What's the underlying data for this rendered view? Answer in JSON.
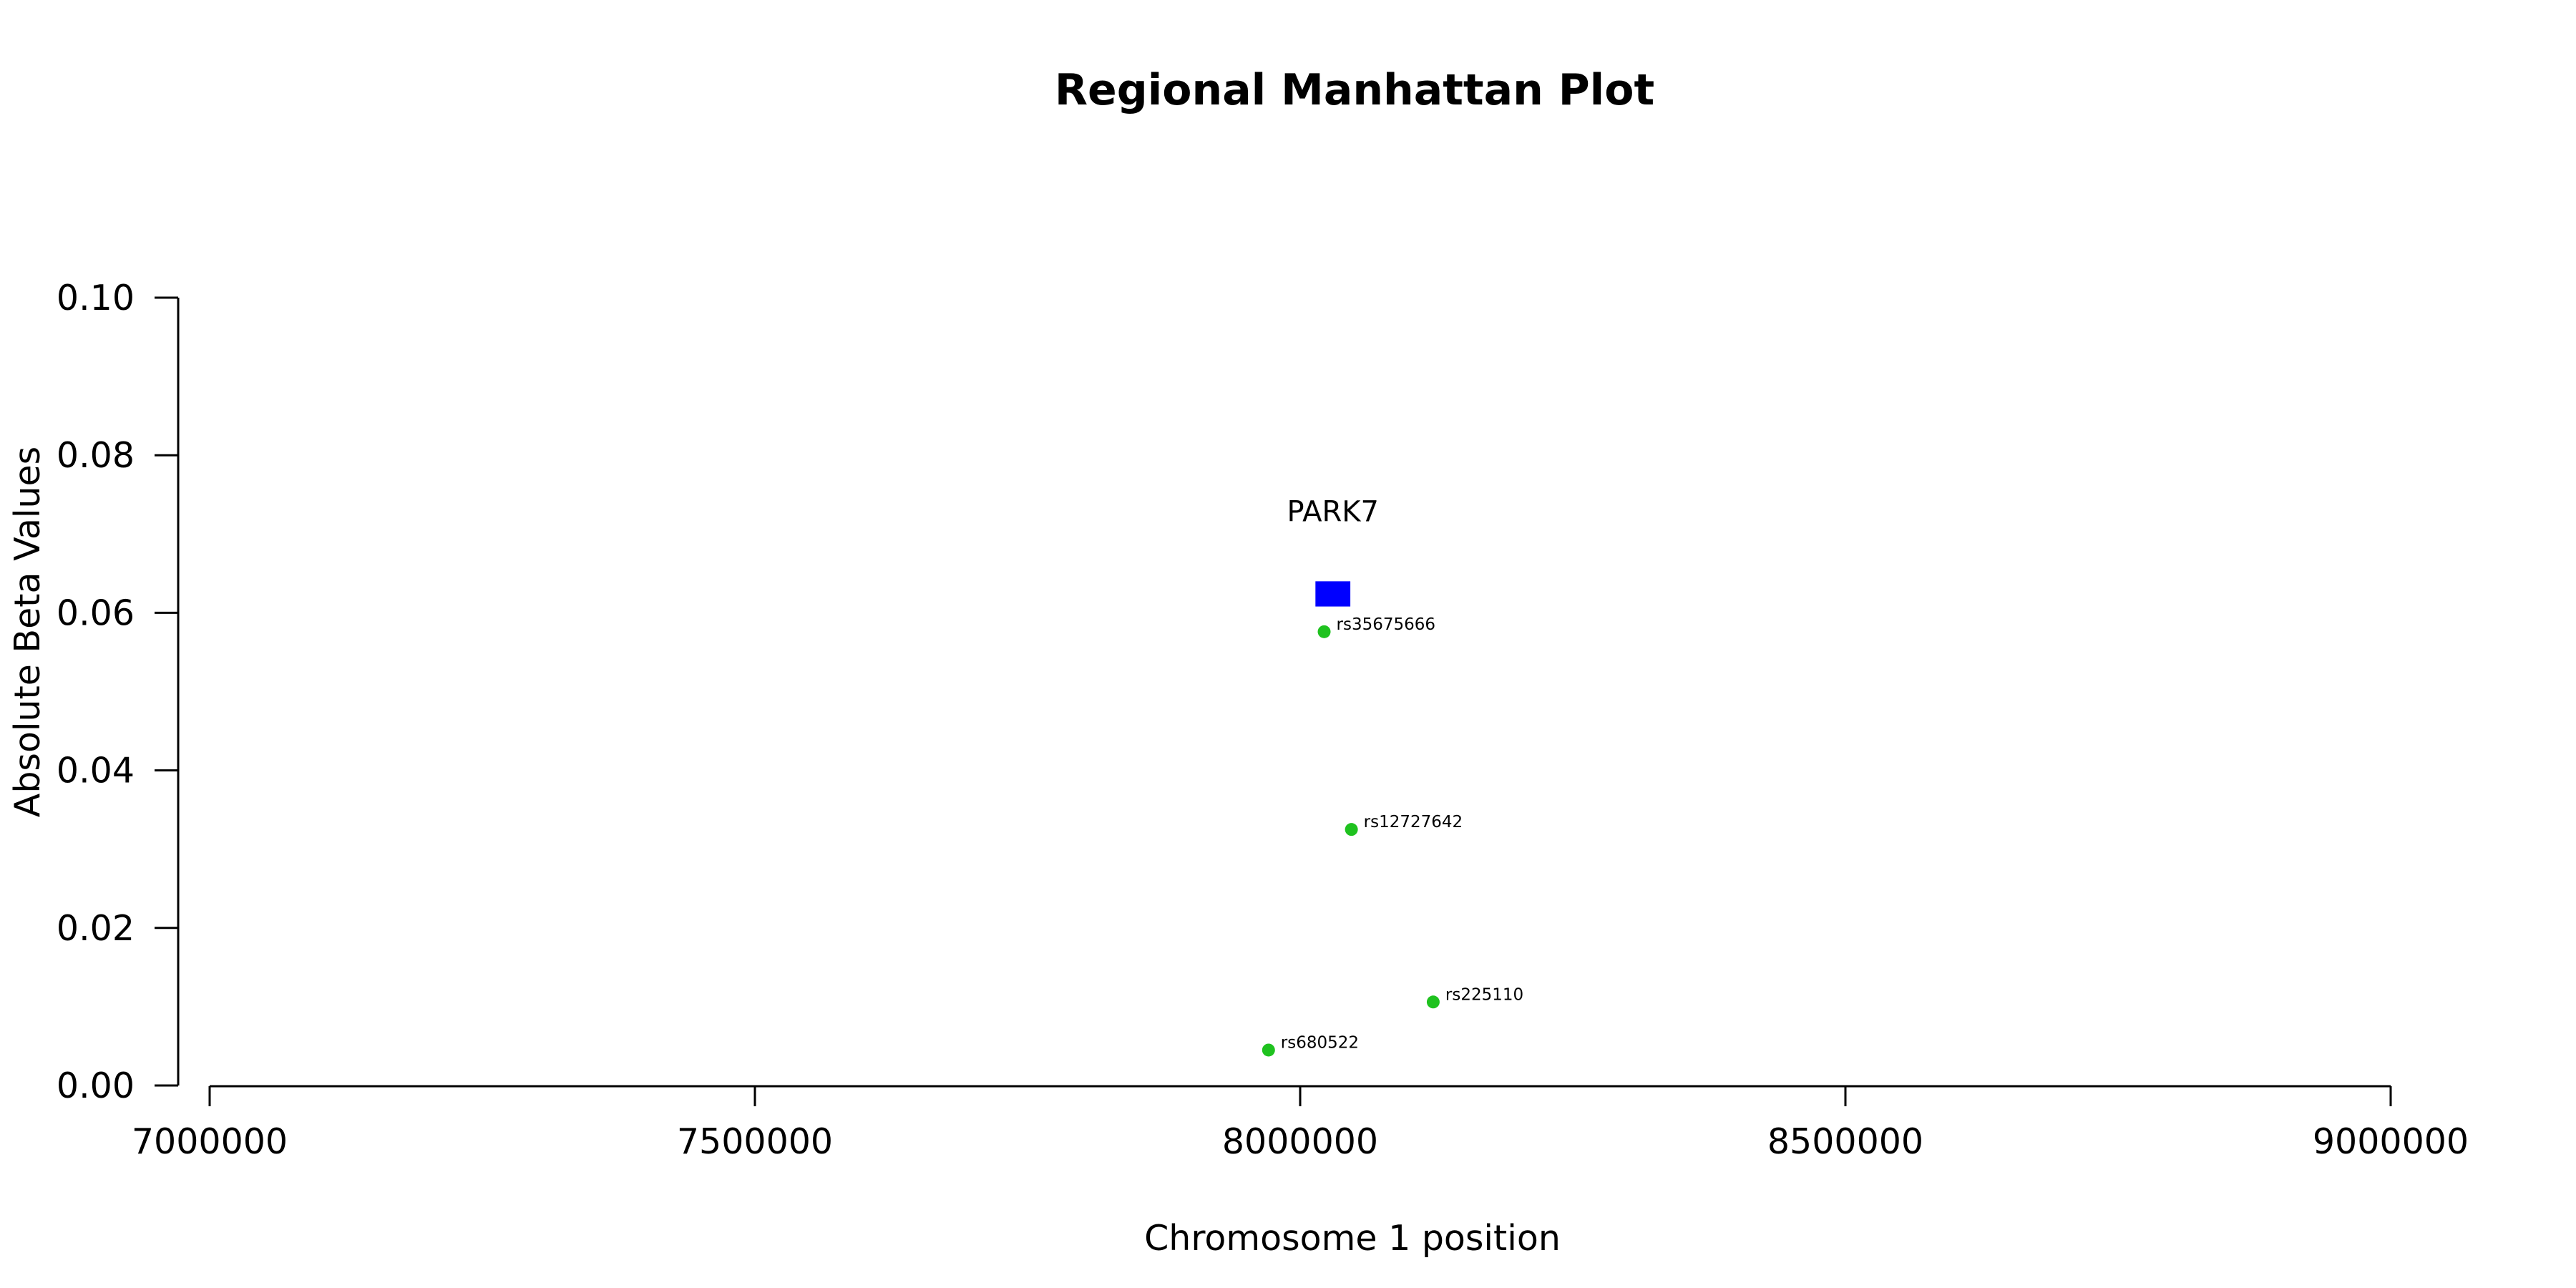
{
  "chart_data": {
    "type": "scatter",
    "title": "Regional Manhattan Plot",
    "xlabel": "Chromosome 1 position",
    "ylabel": "Absolute Beta Values",
    "xlim": [
      7000000,
      9000000
    ],
    "ylim": [
      0,
      0.1
    ],
    "x_ticks": [
      7000000,
      7500000,
      8000000,
      8500000,
      9000000
    ],
    "x_tick_labels": [
      "7000000",
      "7500000",
      "8000000",
      "8500000",
      "9000000"
    ],
    "y_ticks": [
      0,
      0.02,
      0.04,
      0.06,
      0.08,
      0.1
    ],
    "y_tick_labels": [
      "0.00",
      "0.02",
      "0.04",
      "0.06",
      "0.08",
      "0.10"
    ],
    "grid": false,
    "point_color": "#1fc21f",
    "points": [
      {
        "label": "rs35675666",
        "x": 8022000,
        "y": 0.0576
      },
      {
        "label": "rs12727642",
        "x": 8047000,
        "y": 0.0325
      },
      {
        "label": "rs225110",
        "x": 8122000,
        "y": 0.0106
      },
      {
        "label": "rs680522",
        "x": 7971000,
        "y": 0.0045
      }
    ],
    "genes": [
      {
        "name": "PARK7",
        "start": 8014000,
        "end": 8046000,
        "y_bottom": 0.0608,
        "y_top": 0.064,
        "color": "#0000ff"
      }
    ]
  }
}
